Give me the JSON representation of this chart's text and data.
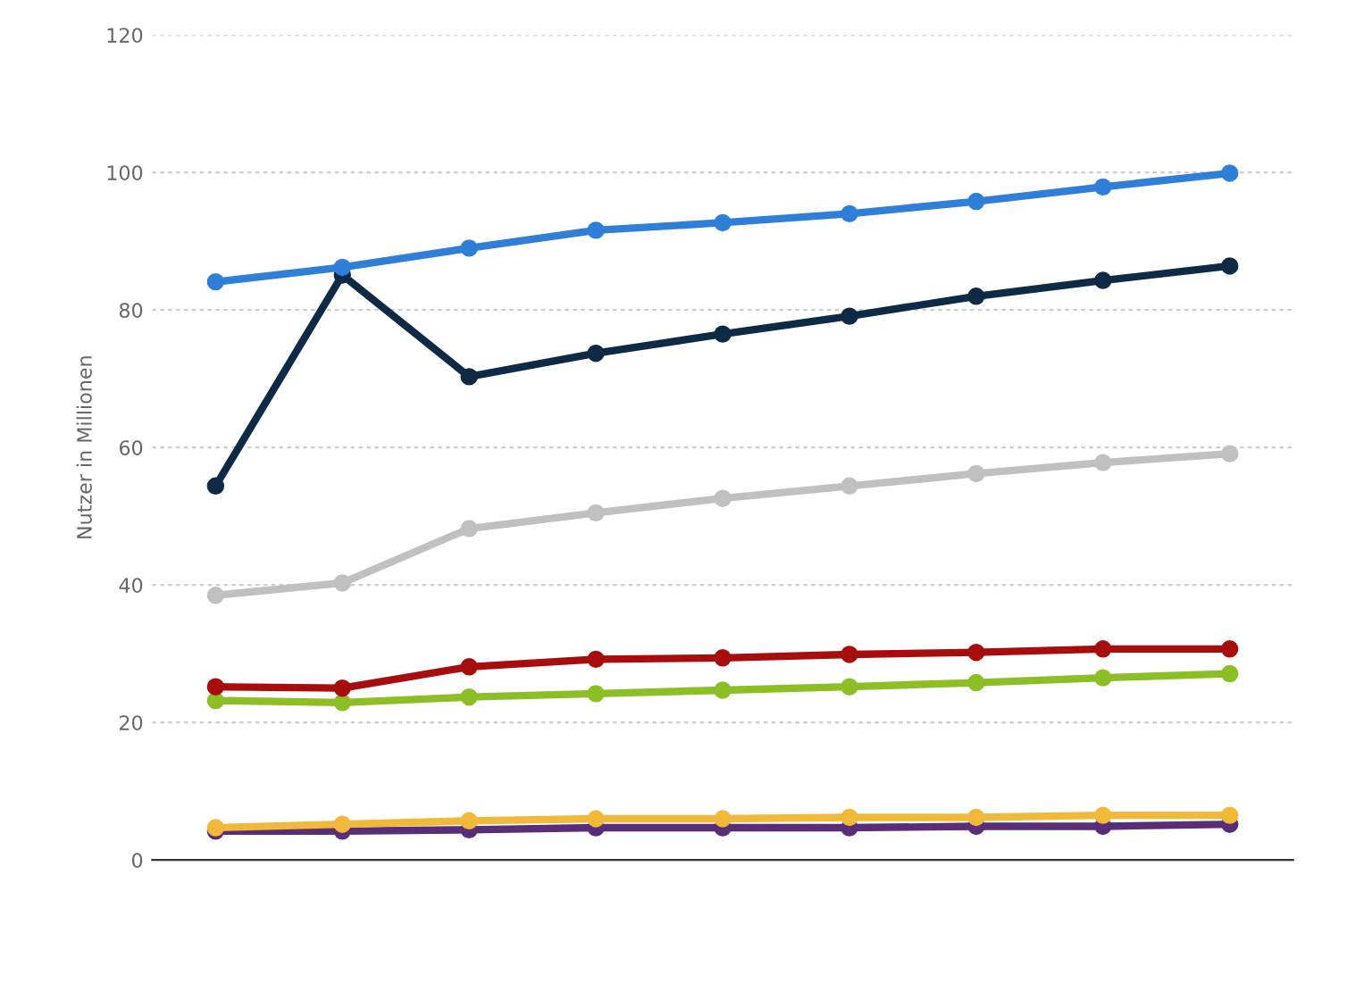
{
  "chart_data": {
    "type": "line",
    "ylabel": "Nutzer in Millionen",
    "categories": [
      null,
      null,
      null,
      null,
      null,
      null,
      null,
      null,
      null
    ],
    "series": [
      {
        "color": "#2f7ed8",
        "values": [
          84.1,
          86.2,
          89.0,
          91.6,
          92.7,
          94.0,
          95.8,
          97.9,
          99.9
        ]
      },
      {
        "color": "#0f2a44",
        "values": [
          54.4,
          85.1,
          70.3,
          73.7,
          76.5,
          79.1,
          82.0,
          84.3,
          86.4
        ]
      },
      {
        "color": "#c0c0c0",
        "values": [
          38.5,
          40.3,
          48.2,
          50.5,
          52.6,
          54.4,
          56.2,
          57.8,
          59.1
        ]
      },
      {
        "color": "#a80d0d",
        "values": [
          25.2,
          25.0,
          28.1,
          29.2,
          29.4,
          29.9,
          30.2,
          30.7,
          30.7
        ]
      },
      {
        "color": "#8cbf26",
        "values": [
          23.2,
          22.9,
          23.7,
          24.2,
          24.7,
          25.2,
          25.8,
          26.5,
          27.1
        ]
      },
      {
        "color": "#f0b93a",
        "values": [
          4.7,
          5.2,
          5.7,
          6.0,
          6.0,
          6.2,
          6.2,
          6.5,
          6.5
        ]
      },
      {
        "color": "#5a2d78",
        "values": [
          4.2,
          4.2,
          4.4,
          4.7,
          4.7,
          4.7,
          4.9,
          4.9,
          5.2
        ]
      }
    ],
    "ylim": [
      0,
      120
    ],
    "yticks": [
      0,
      20,
      40,
      60,
      80,
      100,
      120
    ],
    "grid": "y",
    "marker": "circle",
    "line_style": "solid",
    "tick_labels": "y",
    "legend": false
  }
}
